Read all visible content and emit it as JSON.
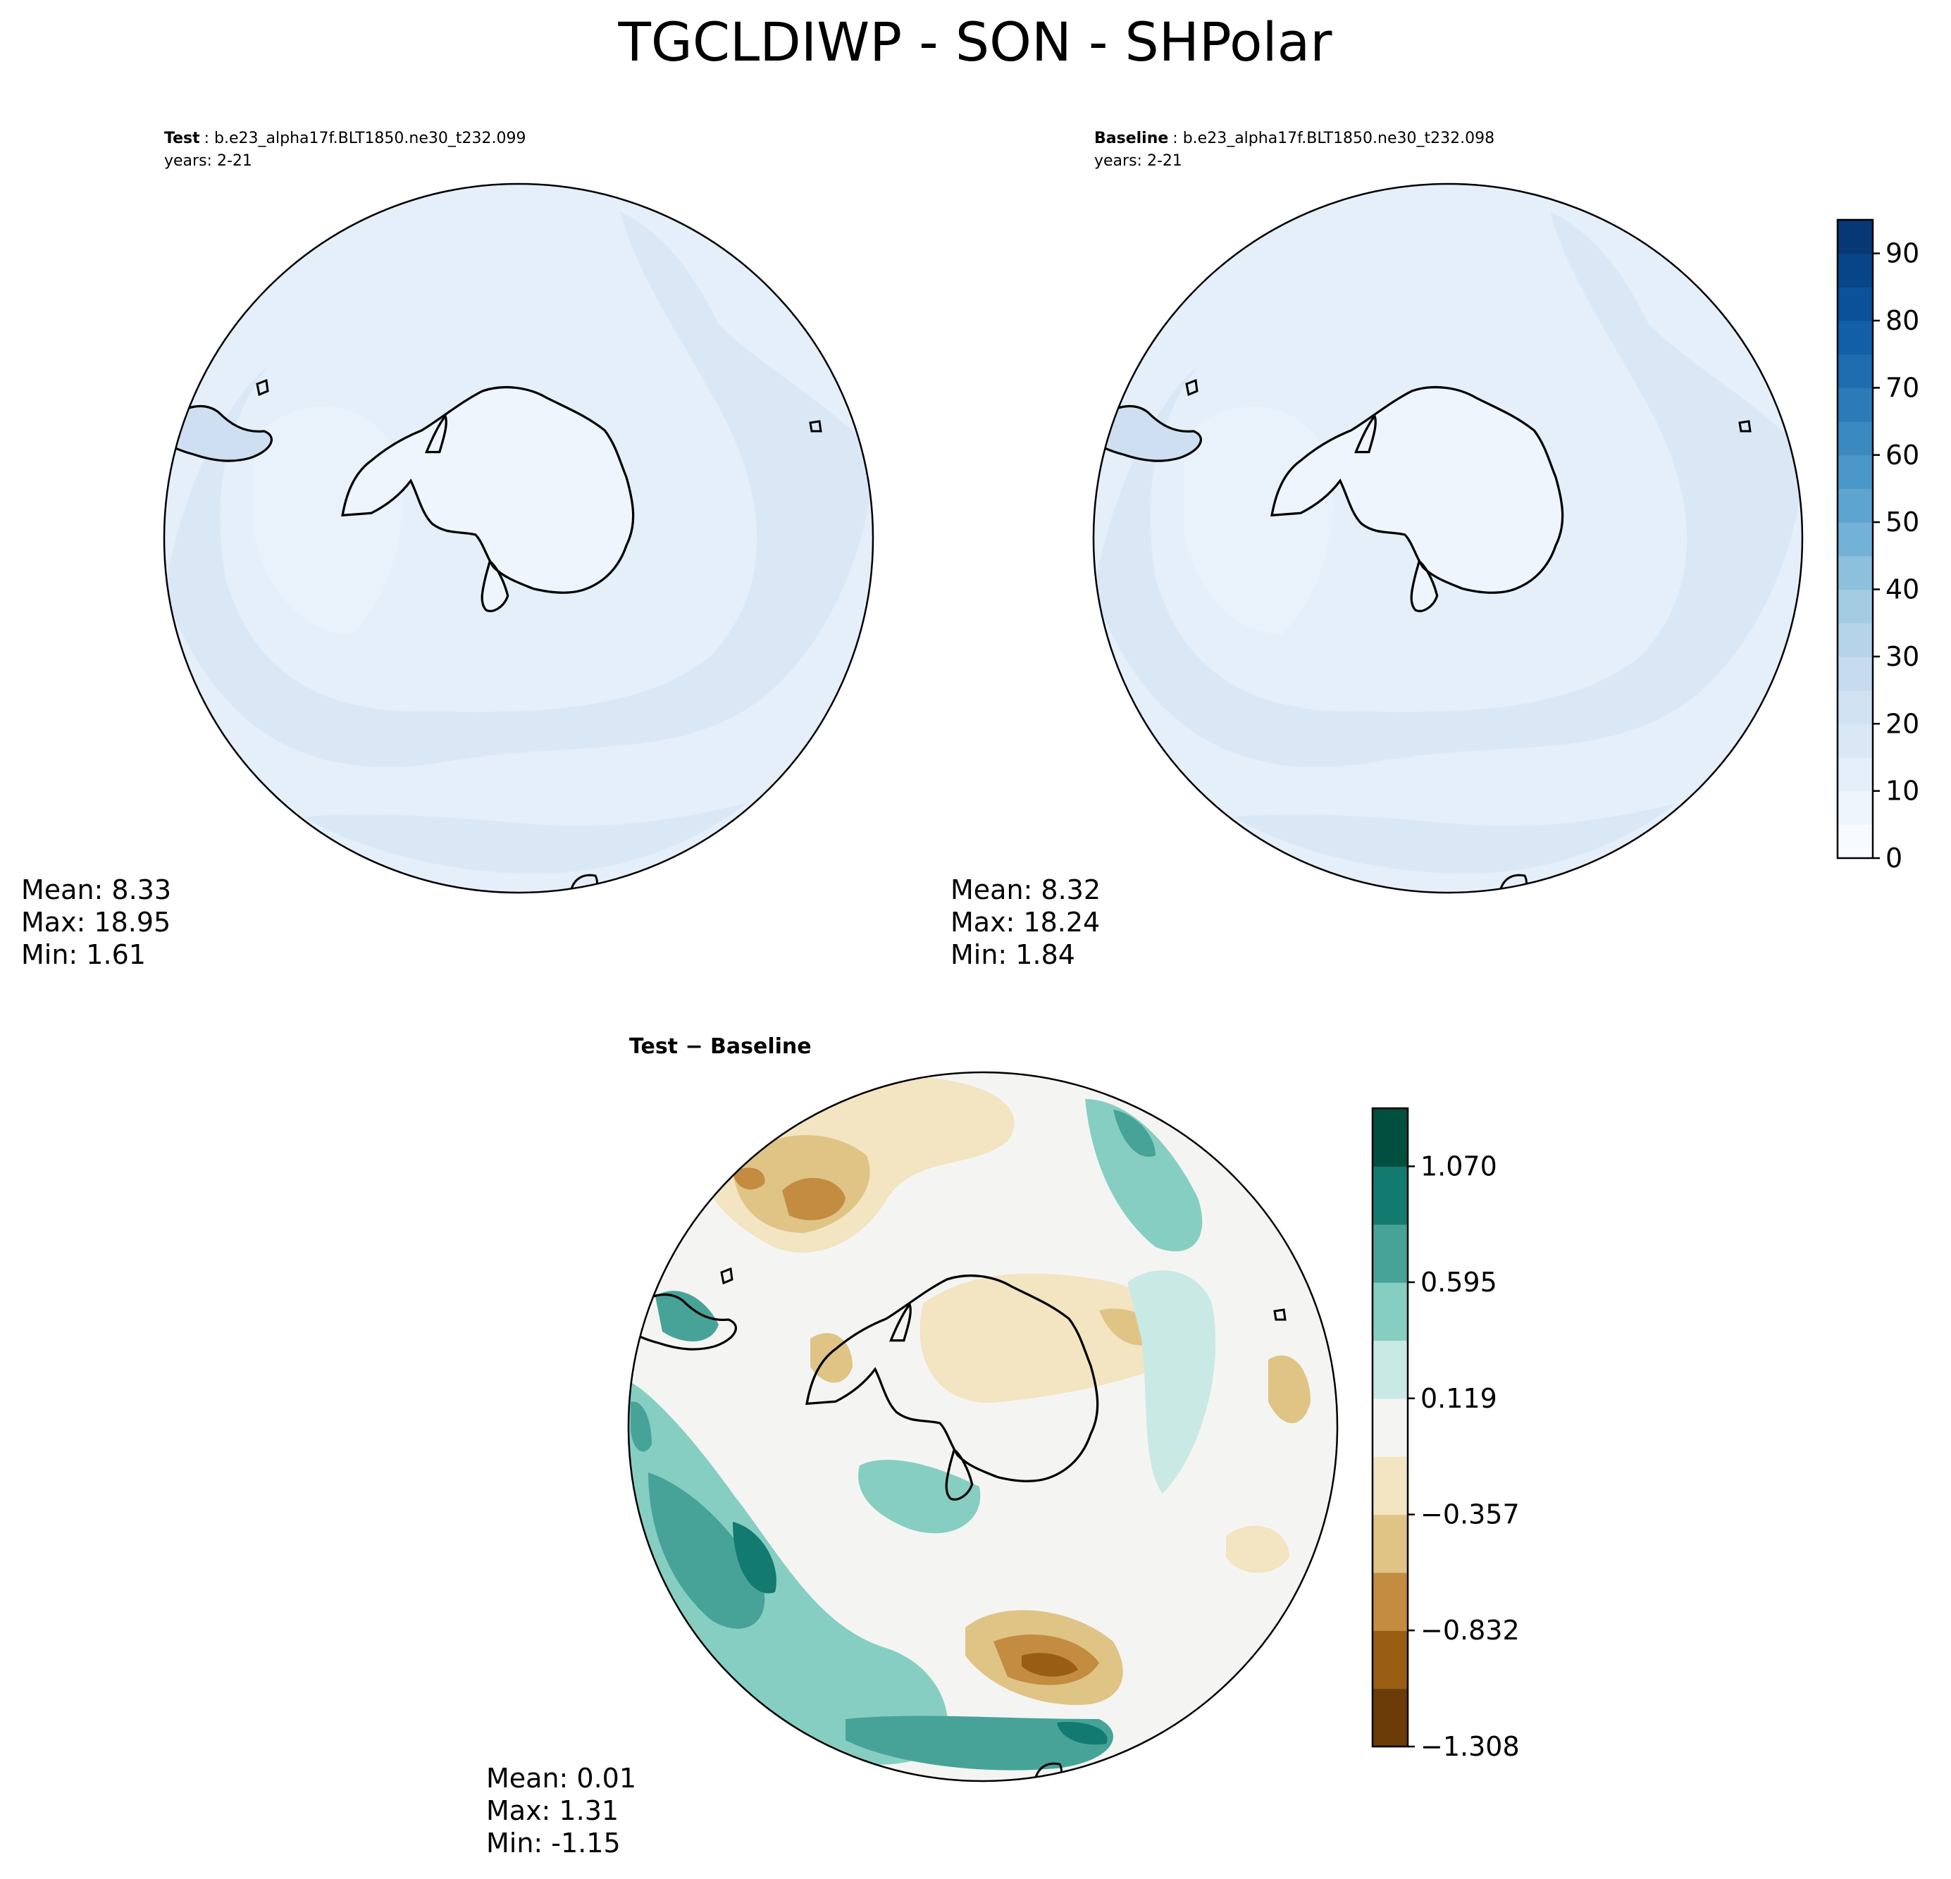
{
  "figure": {
    "suptitle": "TGCLDIWP - SON - SHPolar"
  },
  "chart_data": [
    {
      "type": "heatmap",
      "panel": "test",
      "projection": "south-polar-stereographic",
      "title_label": "Test",
      "title_case": ": b.e23_alpha17f.BLT1850.ne30_t232.099",
      "title_years": "years: 2-21",
      "stats": {
        "mean": "Mean:  8.33",
        "max": "Max: 18.95",
        "min": "Min:  1.61"
      },
      "field_range_shown": [
        1.61,
        18.95
      ]
    },
    {
      "type": "heatmap",
      "panel": "baseline",
      "projection": "south-polar-stereographic",
      "title_label": "Baseline",
      "title_case": ": b.e23_alpha17f.BLT1850.ne30_t232.098",
      "title_years": "years: 2-21",
      "stats": {
        "mean": "Mean:  8.32",
        "max": "Max: 18.24",
        "min": "Min:  1.84"
      },
      "field_range_shown": [
        1.84,
        18.24
      ]
    },
    {
      "type": "heatmap",
      "panel": "difference",
      "projection": "south-polar-stereographic",
      "title_label": "Test − Baseline",
      "stats": {
        "mean": "Mean:  0.01",
        "max": "Max:  1.31",
        "min": "Min: -1.15"
      },
      "field_range_shown": [
        -1.15,
        1.31
      ]
    }
  ],
  "colorbars": {
    "main": {
      "cmap": "Blues",
      "range": [
        0,
        95
      ],
      "levels": 19,
      "ticks": [
        "0",
        "10",
        "20",
        "30",
        "40",
        "50",
        "60",
        "70",
        "80",
        "90"
      ],
      "tick_values": [
        0,
        10,
        20,
        30,
        40,
        50,
        60,
        70,
        80,
        90
      ],
      "colors": [
        "#f7fbff",
        "#eef5fc",
        "#e4eff9",
        "#dae8f6",
        "#d1e2f3",
        "#c6dbef",
        "#b6d4e9",
        "#a3cce3",
        "#8cc0dd",
        "#73b2d8",
        "#5da4d0",
        "#4a98c9",
        "#3a89c1",
        "#2c7bb8",
        "#1f6cb0",
        "#135fa7",
        "#0b519a",
        "#084488",
        "#083776"
      ]
    },
    "diff": {
      "cmap": "BrBG",
      "range": [
        -1.308,
        1.308
      ],
      "levels": 11,
      "ticks": [
        "1.070",
        "0.595",
        "0.119",
        "−0.357",
        "−0.832",
        "−1.308"
      ],
      "tick_values": [
        1.07,
        0.595,
        0.119,
        -0.357,
        -0.832,
        -1.308
      ],
      "colors": [
        "#6b3c07",
        "#9a5d14",
        "#c38c40",
        "#e0c486",
        "#f3e4c2",
        "#f4f5f3",
        "#c9eae4",
        "#86cec2",
        "#47a398",
        "#137a70",
        "#01503f"
      ]
    }
  },
  "colors": {
    "land_fill": "#eef5fc",
    "ocean_base": "#e4eff9",
    "ocean_light": "#e9f2fb",
    "ocean_mid": "#dae8f6",
    "coast": "#000000"
  }
}
